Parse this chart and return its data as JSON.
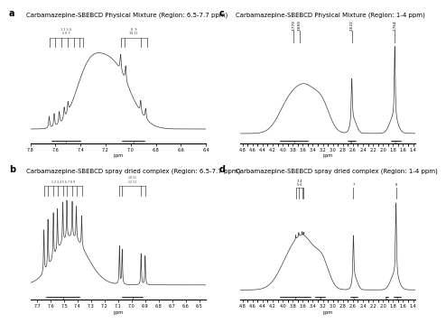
{
  "panel_titles": [
    "Carbamazepine-SBEBCD Physical Mixture (Region: 6.5-7.7 ppm)",
    "Carbamazepine-SBEBCD Physical Mixture (Region: 1-4 ppm)",
    "Carbamazepine-SBEBCD spray dried complex (Region: 6.5-7.7 ppm)",
    "Carbamazepine-SBEBCD spray dried complex (Region: 1-4 ppm)"
  ],
  "panel_labels": [
    "a",
    "b",
    "c",
    "d"
  ],
  "line_color": "#3a3a3a",
  "title_fontsize": 5.0,
  "label_fontsize": 7.0,
  "tick_fontsize": 3.5,
  "annot_fontsize": 3.0
}
